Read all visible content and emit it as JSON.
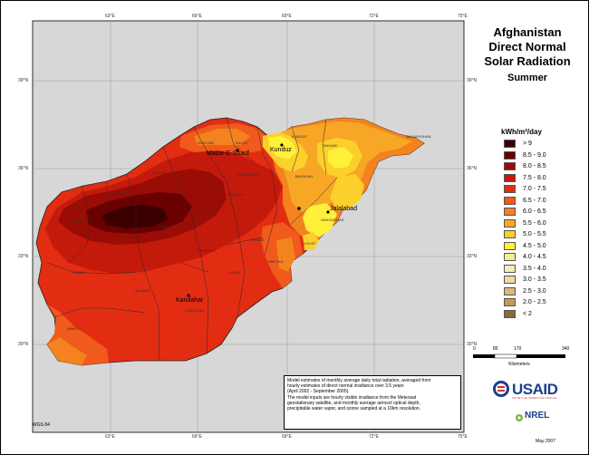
{
  "title": {
    "line1": "Afghanistan",
    "line2": "Direct Normal",
    "line3": "Solar Radiation",
    "season": "Summer"
  },
  "graticule": {
    "top_longitudes": [
      "63°E",
      "66°E",
      "69°E",
      "72°E",
      "75°E"
    ],
    "bottom_longitudes": [
      "63°E",
      "66°E",
      "69°E",
      "72°E",
      "75°E"
    ],
    "left_latitudes": [
      "39°N",
      "36°N",
      "33°N",
      "30°N"
    ],
    "right_latitudes": [
      "39°N",
      "36°N",
      "33°N",
      "30°N"
    ]
  },
  "legend": {
    "header": "kWh/m²/day",
    "classes": [
      {
        "label": "> 9",
        "color": "#3a0000"
      },
      {
        "label": "8.5 - 9.0",
        "color": "#6b0000"
      },
      {
        "label": "8.0 - 8.5",
        "color": "#9a0d06"
      },
      {
        "label": "7.5 - 8.0",
        "color": "#c41a0c"
      },
      {
        "label": "7.0 - 7.5",
        "color": "#e32d12"
      },
      {
        "label": "6.5 - 7.0",
        "color": "#f05a1c"
      },
      {
        "label": "6.0 - 6.5",
        "color": "#f3821f"
      },
      {
        "label": "5.5 - 6.0",
        "color": "#f7a626"
      },
      {
        "label": "5.0 - 5.5",
        "color": "#fcd02a"
      },
      {
        "label": "4.5 - 5.0",
        "color": "#fff03a"
      },
      {
        "label": "4.0 - 4.5",
        "color": "#f3ef8c"
      },
      {
        "label": "3.5 - 4.0",
        "color": "#f5ecb2"
      },
      {
        "label": "3.0 - 3.5",
        "color": "#f1d9a3"
      },
      {
        "label": "2.5 - 3.0",
        "color": "#ddb67a"
      },
      {
        "label": "2.0 - 2.5",
        "color": "#c49a5c"
      },
      {
        "label": "< 2",
        "color": "#8a6a38"
      }
    ]
  },
  "scale_bar": {
    "labels": [
      "0",
      "85",
      "170",
      "340"
    ],
    "unit": "Kilometers"
  },
  "cities": {
    "mazar": "Mazar-E-Sharif",
    "kunduz": "Kunduz",
    "jalalabad": "Jalalabad",
    "kandahar": "Kandahar"
  },
  "provinces": [
    "JAWZJAN",
    "BALKH",
    "KUNDUZ",
    "TAKHAR",
    "BADAKHSHAN",
    "SAMANGAN",
    "BAGHLAN",
    "FARYAB",
    "HERAT",
    "GHOR",
    "BAMYAN",
    "NANGARHAR",
    "KHOST",
    "HILMAND",
    "KANDAHAR",
    "NIMROZ",
    "FARAH",
    "ZABUL",
    "PAKTIKA",
    "GHAZNI",
    "URUZGAN",
    "BADGHIS"
  ],
  "note": {
    "line1": "Model estimates of monthly average daily total radiation, averaged from",
    "line2": "hourly estimates of direct normal irradiance over 3.5 years",
    "line3": "(April 2002 - September 2005).",
    "line4": "The model inputs are hourly visible irradiance from the Meteosat",
    "line5": "geostationary satellite, and monthly average aerosol optical depth,",
    "line6": "precipitable water vapor, and ozone sampled at a 10km resolution."
  },
  "usaid": {
    "name": "USAID",
    "tagline": "FROM THE AMERICAN PEOPLE"
  },
  "nrel": "NREL",
  "date": "May 2007",
  "datum": "WGS 84"
}
